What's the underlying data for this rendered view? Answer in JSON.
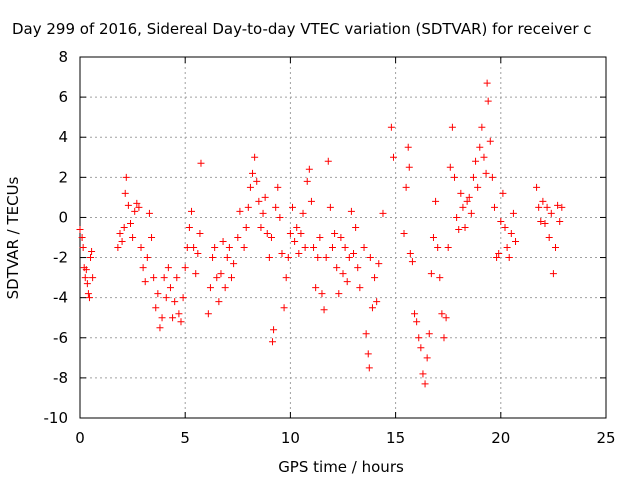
{
  "chart_data": {
    "type": "scatter",
    "title": "Day 299 of 2016, Sidereal Day-to-day VTEC variation (SDTVAR) for receiver c",
    "xlabel": "GPS time / hours",
    "ylabel": "SDTVAR / TECUs",
    "xlim": [
      0,
      25
    ],
    "ylim": [
      -10,
      8
    ],
    "xticks": [
      "0",
      "5",
      "10",
      "15",
      "20",
      "25"
    ],
    "yticks": [
      "-10",
      "-8",
      "-6",
      "-4",
      "-2",
      "0",
      "2",
      "4",
      "6",
      "8"
    ],
    "grid": true,
    "marker": "+",
    "color": "#ff0000",
    "series": [
      {
        "name": "SDTVAR",
        "points": [
          [
            0.0,
            -0.6
          ],
          [
            0.1,
            -1.0
          ],
          [
            0.15,
            -1.5
          ],
          [
            0.2,
            -2.5
          ],
          [
            0.25,
            -3.0
          ],
          [
            0.3,
            -2.6
          ],
          [
            0.35,
            -3.3
          ],
          [
            0.4,
            -3.8
          ],
          [
            0.45,
            -4.0
          ],
          [
            0.5,
            -2.0
          ],
          [
            0.55,
            -1.7
          ],
          [
            0.6,
            -3.0
          ],
          [
            1.8,
            -1.5
          ],
          [
            1.9,
            -0.8
          ],
          [
            2.0,
            -1.2
          ],
          [
            2.1,
            -0.5
          ],
          [
            2.15,
            1.2
          ],
          [
            2.2,
            2.0
          ],
          [
            2.3,
            0.6
          ],
          [
            2.4,
            -0.3
          ],
          [
            2.5,
            -1.0
          ],
          [
            2.6,
            0.3
          ],
          [
            2.7,
            0.7
          ],
          [
            2.8,
            0.5
          ],
          [
            2.9,
            -1.5
          ],
          [
            3.0,
            -2.5
          ],
          [
            3.1,
            -3.2
          ],
          [
            3.2,
            -2.0
          ],
          [
            3.3,
            0.2
          ],
          [
            3.4,
            -1.0
          ],
          [
            3.5,
            -3.0
          ],
          [
            3.6,
            -4.5
          ],
          [
            3.7,
            -3.8
          ],
          [
            3.8,
            -5.5
          ],
          [
            3.9,
            -5.0
          ],
          [
            4.0,
            -3.0
          ],
          [
            4.1,
            -4.0
          ],
          [
            4.2,
            -2.5
          ],
          [
            4.3,
            -3.5
          ],
          [
            4.4,
            -5.0
          ],
          [
            4.5,
            -4.2
          ],
          [
            4.6,
            -3.0
          ],
          [
            4.7,
            -4.8
          ],
          [
            4.8,
            -5.2
          ],
          [
            4.9,
            -4.0
          ],
          [
            5.0,
            -2.5
          ],
          [
            5.1,
            -1.5
          ],
          [
            5.2,
            -0.5
          ],
          [
            5.3,
            0.3
          ],
          [
            5.4,
            -1.5
          ],
          [
            5.5,
            -2.8
          ],
          [
            5.6,
            -1.8
          ],
          [
            5.7,
            -0.8
          ],
          [
            5.75,
            2.7
          ],
          [
            6.1,
            -4.8
          ],
          [
            6.2,
            -3.5
          ],
          [
            6.3,
            -2.0
          ],
          [
            6.4,
            -1.5
          ],
          [
            6.5,
            -3.0
          ],
          [
            6.6,
            -4.2
          ],
          [
            6.7,
            -2.8
          ],
          [
            6.8,
            -1.2
          ],
          [
            6.9,
            -3.5
          ],
          [
            7.0,
            -2.0
          ],
          [
            7.1,
            -1.5
          ],
          [
            7.2,
            -3.0
          ],
          [
            7.3,
            -2.3
          ],
          [
            7.5,
            -1.0
          ],
          [
            7.6,
            0.3
          ],
          [
            7.8,
            -1.5
          ],
          [
            7.9,
            -0.5
          ],
          [
            8.0,
            0.5
          ],
          [
            8.1,
            1.5
          ],
          [
            8.2,
            2.2
          ],
          [
            8.3,
            3.0
          ],
          [
            8.4,
            1.8
          ],
          [
            8.5,
            0.8
          ],
          [
            8.6,
            -0.5
          ],
          [
            8.7,
            0.2
          ],
          [
            8.8,
            1.0
          ],
          [
            8.9,
            -0.8
          ],
          [
            9.0,
            -2.0
          ],
          [
            9.1,
            -1.0
          ],
          [
            9.15,
            -6.2
          ],
          [
            9.2,
            -5.6
          ],
          [
            9.3,
            0.5
          ],
          [
            9.4,
            1.5
          ],
          [
            9.5,
            0.0
          ],
          [
            9.6,
            -1.8
          ],
          [
            9.7,
            -4.5
          ],
          [
            9.8,
            -3.0
          ],
          [
            9.9,
            -2.0
          ],
          [
            10.0,
            -0.8
          ],
          [
            10.1,
            0.5
          ],
          [
            10.2,
            -1.2
          ],
          [
            10.3,
            -0.5
          ],
          [
            10.4,
            -1.8
          ],
          [
            10.5,
            -0.8
          ],
          [
            10.6,
            0.2
          ],
          [
            10.7,
            -1.5
          ],
          [
            10.8,
            1.8
          ],
          [
            10.9,
            2.4
          ],
          [
            11.0,
            0.8
          ],
          [
            11.1,
            -1.5
          ],
          [
            11.2,
            -3.5
          ],
          [
            11.3,
            -2.0
          ],
          [
            11.4,
            -1.0
          ],
          [
            11.5,
            -3.8
          ],
          [
            11.6,
            -4.6
          ],
          [
            11.7,
            -2.0
          ],
          [
            11.8,
            2.8
          ],
          [
            11.9,
            0.5
          ],
          [
            12.0,
            -1.5
          ],
          [
            12.1,
            -0.8
          ],
          [
            12.2,
            -2.5
          ],
          [
            12.3,
            -3.8
          ],
          [
            12.4,
            -1.0
          ],
          [
            12.5,
            -2.8
          ],
          [
            12.6,
            -1.5
          ],
          [
            12.7,
            -3.2
          ],
          [
            12.8,
            -2.0
          ],
          [
            12.9,
            0.3
          ],
          [
            13.0,
            -1.8
          ],
          [
            13.1,
            -0.5
          ],
          [
            13.2,
            -2.5
          ],
          [
            13.3,
            -3.5
          ],
          [
            13.5,
            -1.5
          ],
          [
            13.6,
            -5.8
          ],
          [
            13.7,
            -6.8
          ],
          [
            13.75,
            -7.5
          ],
          [
            13.8,
            -2.0
          ],
          [
            13.9,
            -4.5
          ],
          [
            14.0,
            -3.0
          ],
          [
            14.1,
            -4.2
          ],
          [
            14.2,
            -2.3
          ],
          [
            14.4,
            0.2
          ],
          [
            14.8,
            4.5
          ],
          [
            14.9,
            3.0
          ],
          [
            15.4,
            -0.8
          ],
          [
            15.5,
            1.5
          ],
          [
            15.6,
            3.5
          ],
          [
            15.65,
            2.5
          ],
          [
            15.7,
            -1.8
          ],
          [
            15.8,
            -2.2
          ],
          [
            15.9,
            -4.8
          ],
          [
            16.0,
            -5.2
          ],
          [
            16.1,
            -6.0
          ],
          [
            16.2,
            -6.5
          ],
          [
            16.3,
            -7.8
          ],
          [
            16.4,
            -8.3
          ],
          [
            16.5,
            -7.0
          ],
          [
            16.6,
            -5.8
          ],
          [
            16.7,
            -2.8
          ],
          [
            16.8,
            -1.0
          ],
          [
            16.9,
            0.8
          ],
          [
            17.0,
            -1.5
          ],
          [
            17.1,
            -3.0
          ],
          [
            17.2,
            -4.8
          ],
          [
            17.3,
            -6.0
          ],
          [
            17.4,
            -5.0
          ],
          [
            17.5,
            -1.5
          ],
          [
            17.6,
            2.5
          ],
          [
            17.7,
            4.5
          ],
          [
            17.8,
            2.0
          ],
          [
            17.9,
            0.0
          ],
          [
            18.0,
            -0.6
          ],
          [
            18.1,
            1.2
          ],
          [
            18.2,
            0.5
          ],
          [
            18.3,
            -0.5
          ],
          [
            18.4,
            0.8
          ],
          [
            18.5,
            1.0
          ],
          [
            18.6,
            0.2
          ],
          [
            18.7,
            2.0
          ],
          [
            18.8,
            2.8
          ],
          [
            18.9,
            1.5
          ],
          [
            19.0,
            3.5
          ],
          [
            19.1,
            4.5
          ],
          [
            19.2,
            3.0
          ],
          [
            19.3,
            2.2
          ],
          [
            19.35,
            6.7
          ],
          [
            19.4,
            5.8
          ],
          [
            19.5,
            3.8
          ],
          [
            19.6,
            2.0
          ],
          [
            19.7,
            0.5
          ],
          [
            19.8,
            -2.0
          ],
          [
            19.9,
            -1.8
          ],
          [
            20.0,
            -0.2
          ],
          [
            20.1,
            1.2
          ],
          [
            20.2,
            -0.5
          ],
          [
            20.3,
            -1.5
          ],
          [
            20.4,
            -2.0
          ],
          [
            20.5,
            -0.8
          ],
          [
            20.6,
            0.2
          ],
          [
            20.7,
            -1.2
          ],
          [
            21.7,
            1.5
          ],
          [
            21.8,
            0.5
          ],
          [
            21.9,
            -0.2
          ],
          [
            22.0,
            0.8
          ],
          [
            22.1,
            -0.3
          ],
          [
            22.2,
            0.5
          ],
          [
            22.3,
            -1.0
          ],
          [
            22.4,
            0.2
          ],
          [
            22.5,
            -2.8
          ],
          [
            22.6,
            -1.5
          ],
          [
            22.7,
            0.6
          ],
          [
            22.8,
            -0.2
          ],
          [
            22.9,
            0.5
          ]
        ]
      }
    ]
  }
}
